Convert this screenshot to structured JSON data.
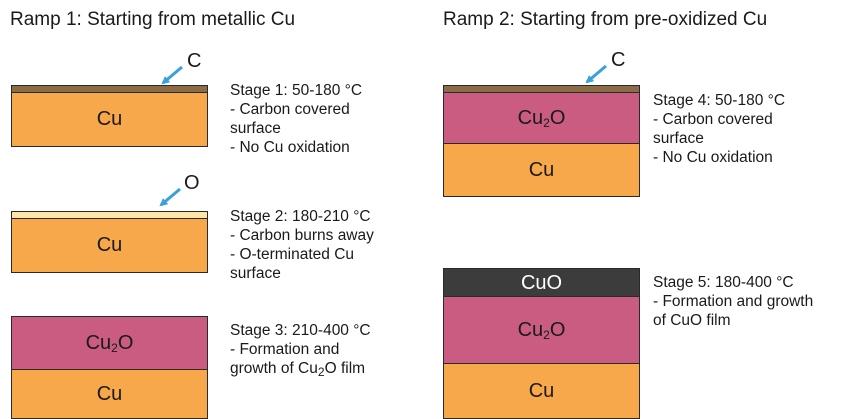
{
  "headings": {
    "ramp1": "Ramp 1: Starting from metallic Cu",
    "ramp2": "Ramp 2: Starting from pre-oxidized Cu"
  },
  "layers": {
    "cu": "Cu",
    "cu2o_base": "Cu",
    "cu2o_sub": "2",
    "cu2o_end": "O",
    "cuo": "CuO"
  },
  "markers": {
    "carbon": "C",
    "oxygen": "O"
  },
  "stages": {
    "s1": {
      "title": "Stage 1: 50-180 °C",
      "lines": [
        "- Carbon covered",
        "surface",
        "- No Cu oxidation"
      ]
    },
    "s2": {
      "title": "Stage 2: 180-210 °C",
      "lines": [
        "- Carbon burns away",
        "- O-terminated Cu",
        "surface"
      ]
    },
    "s3": {
      "title": "Stage 3: 210-400 °C",
      "line1": "- Formation and",
      "line2_pre": "growth of Cu",
      "line2_sub": "2",
      "line2_post": "O film"
    },
    "s4": {
      "title": "Stage 4: 50-180 °C",
      "lines": [
        "- Carbon covered",
        "surface",
        "- No Cu oxidation"
      ]
    },
    "s5": {
      "title": "Stage 5: 180-400 °C",
      "lines": [
        "- Formation and growth",
        "of CuO film"
      ]
    }
  },
  "colors": {
    "cu": "#f6a84a",
    "cu2o": "#c95c80",
    "cuo": "#3c3c3c",
    "carbon": "#8a6c47",
    "oxygen_layer": "#fde6a8",
    "arrow": "#3aa0dc"
  }
}
